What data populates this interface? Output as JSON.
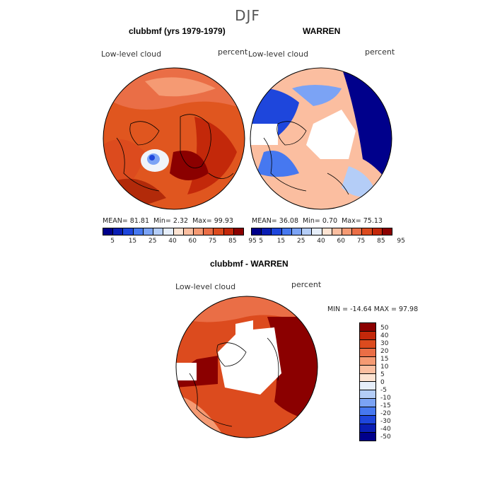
{
  "season": "DJF",
  "panels": {
    "model": {
      "title": "clubbmf (yrs 1979-1979)",
      "field": "Low-level cloud",
      "units": "percent",
      "stats": {
        "mean_label": "MEAN=",
        "mean": "81.81",
        "min_label": "Min=",
        "min": "2.32",
        "max_label": "Max=",
        "max": "99.93"
      }
    },
    "obs": {
      "title": "WARREN",
      "field": "Low-level cloud",
      "units": "percent",
      "stats": {
        "mean_label": "MEAN=",
        "mean": "36.08",
        "min_label": "Min=",
        "min": "0.70",
        "max_label": "Max=",
        "max": "75.13"
      }
    },
    "diff": {
      "title": "clubbmf - WARREN",
      "field": "Low-level cloud",
      "units": "percent",
      "minmax": "MIN = -14.64 MAX =  97.98"
    }
  },
  "colorbar_abs": {
    "colors": [
      "#00008b",
      "#0a1eb4",
      "#1e46dc",
      "#4678f0",
      "#7ba3f5",
      "#b4cdf7",
      "#e6eefa",
      "#fde3d2",
      "#fbbea0",
      "#f59a73",
      "#ea6e46",
      "#dc4b1e",
      "#c3280a",
      "#8b0000"
    ],
    "labels": [
      "5",
      "15",
      "25",
      "40",
      "60",
      "75",
      "85",
      "95"
    ]
  },
  "colorbar_diff": {
    "colors": [
      "#8b0000",
      "#c3280a",
      "#dc4b1e",
      "#ea6e46",
      "#f59a73",
      "#fbbea0",
      "#fde3d2",
      "#e6eefa",
      "#b4cdf7",
      "#7ba3f5",
      "#4678f0",
      "#1e46dc",
      "#0a1eb4",
      "#00008b"
    ],
    "labels": [
      "50",
      "40",
      "30",
      "20",
      "15",
      "10",
      "5",
      "0",
      "-5",
      "-10",
      "-15",
      "-20",
      "-30",
      "-40",
      "-50"
    ]
  }
}
